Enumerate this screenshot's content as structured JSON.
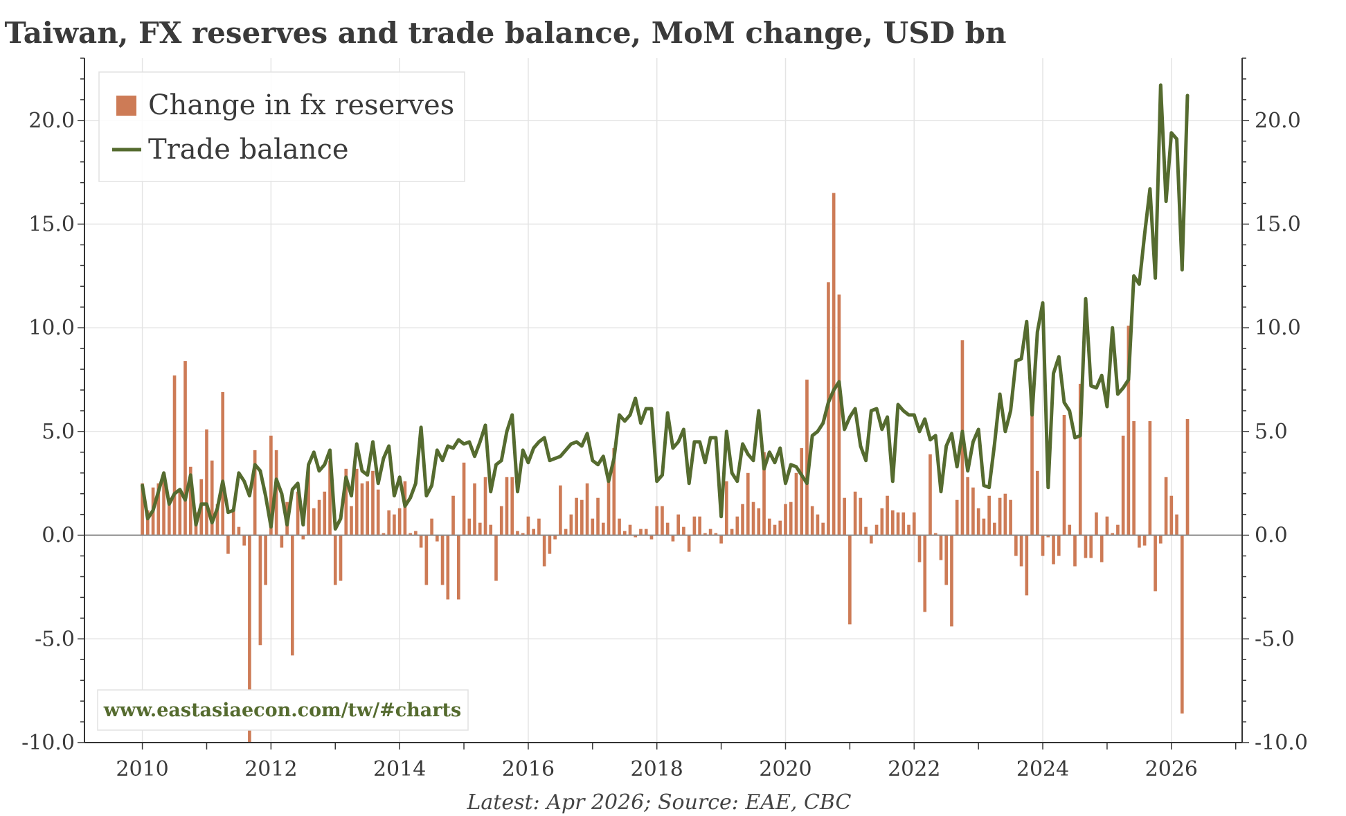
{
  "chart_data": {
    "type": "bar+line",
    "title": "Taiwan, FX reserves and trade balance, MoM change, USD bn",
    "source_note": "Latest: Apr 2026; Source: EAE, CBC",
    "watermark": "www.eastasiaecon.com/tw/#charts",
    "x_range": [
      2009.1,
      2027.1
    ],
    "ylim": [
      -10,
      23
    ],
    "y_ticks": [
      "20.0",
      "15.0",
      "10.0",
      "5.0",
      "0.0",
      "-5.0",
      "-10.0"
    ],
    "x_ticks": [
      "2010",
      "2012",
      "2014",
      "2016",
      "2018",
      "2020",
      "2022",
      "2024",
      "2026"
    ],
    "grid": true,
    "legend_position": "top-left",
    "colors": {
      "bars": "#cd7b56",
      "line": "#556b2f",
      "watermark": "#556b2f",
      "grid": "#e4e4e4",
      "axis": "#333333"
    },
    "series": [
      {
        "name": "Change in fx reserves",
        "kind": "bar",
        "start": "2010-01",
        "values": [
          2.5,
          1.2,
          2.3,
          2.5,
          3.0,
          1.8,
          7.7,
          2.2,
          8.4,
          3.3,
          1.1,
          2.7,
          5.1,
          3.6,
          1.5,
          6.9,
          -0.9,
          1.3,
          0.4,
          -0.5,
          -10.0,
          4.1,
          -5.3,
          -2.4,
          4.8,
          4.1,
          -0.6,
          1.6,
          -5.8,
          2.1,
          -0.2,
          3.4,
          1.3,
          1.7,
          2.1,
          3.6,
          -2.4,
          -2.2,
          3.2,
          1.4,
          3.2,
          2.5,
          2.6,
          3.1,
          2.2,
          0.1,
          1.2,
          1.0,
          1.3,
          2.6,
          0.1,
          0.2,
          -0.6,
          -2.4,
          0.8,
          -0.3,
          -2.4,
          -3.1,
          1.9,
          -3.1,
          3.5,
          0.8,
          2.5,
          0.6,
          2.8,
          0.5,
          -2.2,
          1.4,
          2.8,
          2.8,
          0.2,
          0.1,
          0.9,
          0.3,
          0.8,
          -1.5,
          -0.9,
          -0.2,
          2.4,
          0.3,
          1.0,
          1.8,
          1.7,
          2.5,
          0.8,
          1.8,
          0.6,
          2.7,
          4.2,
          0.8,
          0.2,
          0.5,
          -0.1,
          0.3,
          0.3,
          -0.2,
          1.4,
          1.4,
          0.6,
          -0.3,
          1.0,
          0.4,
          -0.8,
          0.9,
          0.9,
          0.1,
          0.3,
          0.1,
          -0.4,
          2.6,
          0.3,
          0.9,
          1.5,
          3.0,
          1.6,
          1.3,
          4.0,
          0.8,
          0.5,
          0.7,
          1.5,
          1.6,
          3.0,
          4.2,
          7.5,
          1.4,
          1.0,
          0.6,
          12.2,
          16.5,
          11.6,
          1.8,
          -4.3,
          2.1,
          1.8,
          0.4,
          -0.4,
          0.5,
          1.3,
          1.9,
          1.2,
          1.1,
          1.1,
          0.5,
          1.1,
          -1.3,
          -3.7,
          3.9,
          0.1,
          -1.2,
          -2.4,
          -4.4,
          1.7,
          9.4,
          2.8,
          2.3,
          1.3,
          0.8,
          1.9,
          0.6,
          1.8,
          2.0,
          1.7,
          -1.0,
          -1.5,
          -2.9,
          6.4,
          3.1,
          -1.0,
          -0.1,
          -1.4,
          -1.0,
          5.8,
          0.5,
          -1.5,
          7.3,
          -1.1,
          -1.1,
          1.1,
          -1.3,
          0.9,
          0.1,
          0.5,
          4.8,
          10.1,
          5.5,
          -0.6,
          -0.5,
          5.5,
          -2.7,
          -0.4,
          2.8,
          1.9,
          1.0,
          -8.6,
          5.6
        ]
      },
      {
        "name": "Trade balance",
        "kind": "line",
        "start": "2010-01",
        "values": [
          2.4,
          0.8,
          1.2,
          2.1,
          3.0,
          1.5,
          2.0,
          2.2,
          1.7,
          2.9,
          0.5,
          1.5,
          1.5,
          0.6,
          1.3,
          2.6,
          1.1,
          1.2,
          3.0,
          2.6,
          1.9,
          3.4,
          3.1,
          1.9,
          0.4,
          2.7,
          2.0,
          0.5,
          2.2,
          2.5,
          0.5,
          3.4,
          4.0,
          3.1,
          3.4,
          4.1,
          0.3,
          0.8,
          2.8,
          1.9,
          4.4,
          3.1,
          2.9,
          4.5,
          2.5,
          3.7,
          4.3,
          1.9,
          2.8,
          1.4,
          1.8,
          2.5,
          5.2,
          1.9,
          2.4,
          4.1,
          3.6,
          4.3,
          4.2,
          4.6,
          4.4,
          4.5,
          3.8,
          4.5,
          5.3,
          2.1,
          3.4,
          3.6,
          5.0,
          5.8,
          2.1,
          4.1,
          3.5,
          4.2,
          4.5,
          4.7,
          3.6,
          3.7,
          3.8,
          4.1,
          4.4,
          4.5,
          4.3,
          4.9,
          3.6,
          3.4,
          3.8,
          2.6,
          3.7,
          5.8,
          5.5,
          5.8,
          6.6,
          5.4,
          6.1,
          6.1,
          2.6,
          2.9,
          5.9,
          4.2,
          4.5,
          5.1,
          2.5,
          4.5,
          4.5,
          3.5,
          4.7,
          4.7,
          0.9,
          5.0,
          3.0,
          2.6,
          4.4,
          3.9,
          3.6,
          6.0,
          3.2,
          4.0,
          3.5,
          4.2,
          2.5,
          3.4,
          3.3,
          2.9,
          2.5,
          4.8,
          5.0,
          5.4,
          6.4,
          7.0,
          7.4,
          5.1,
          5.7,
          6.1,
          4.3,
          3.6,
          6.0,
          6.1,
          5.1,
          5.7,
          2.6,
          6.3,
          6.0,
          5.8,
          5.8,
          5.0,
          5.6,
          4.6,
          4.8,
          2.1,
          4.3,
          4.9,
          3.3,
          5.0,
          3.1,
          4.5,
          5.1,
          2.4,
          2.3,
          4.4,
          6.8,
          5.0,
          6.0,
          8.4,
          8.5,
          10.3,
          5.8,
          9.8,
          11.2,
          2.3,
          7.8,
          8.6,
          6.4,
          6.0,
          4.7,
          4.8,
          11.4,
          7.2,
          7.1,
          7.7,
          6.2,
          10.0,
          6.8,
          7.1,
          7.5,
          12.5,
          12.1,
          14.5,
          16.7,
          12.4,
          21.7,
          16.1,
          19.4,
          19.1,
          12.8,
          21.2
        ]
      }
    ]
  }
}
